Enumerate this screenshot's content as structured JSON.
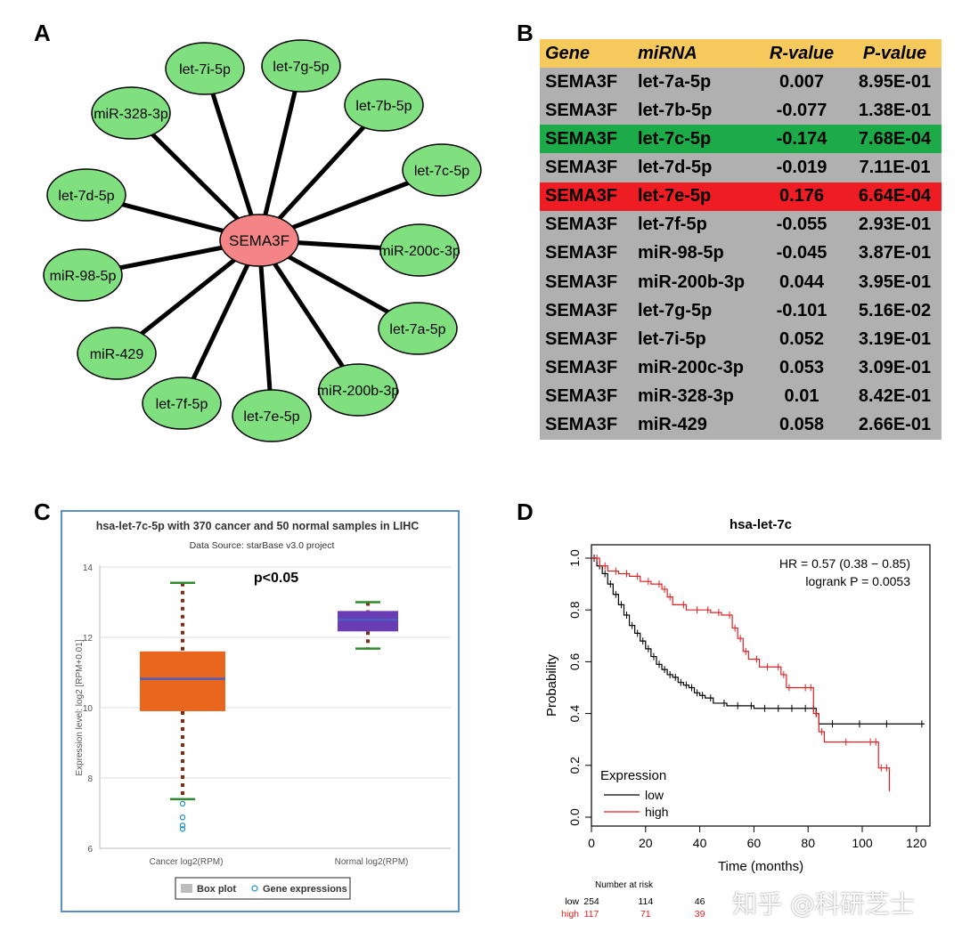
{
  "panels": {
    "a": "A",
    "b": "B",
    "c": "C",
    "d": "D"
  },
  "network": {
    "center": "SEMA3F",
    "colors": {
      "center_fill": "#f48486",
      "node_fill": "#80e080",
      "edge": "#000000"
    },
    "nodes": [
      "let-7i-5p",
      "let-7g-5p",
      "let-7b-5p",
      "miR-328-3p",
      "let-7c-5p",
      "let-7d-5p",
      "miR-200c-3p",
      "miR-98-5p",
      "let-7a-5p",
      "miR-429",
      "miR-200b-3p",
      "let-7f-5p",
      "let-7e-5p"
    ]
  },
  "table": {
    "headers": [
      "Gene",
      "miRNA",
      "R-value",
      "P-value"
    ],
    "colors": {
      "header": "#f6c95d",
      "row": "#b0b0b0",
      "green": "#1daa48",
      "red": "#ee1c23"
    },
    "rows": [
      {
        "gene": "SEMA3F",
        "mirna": "let-7a-5p",
        "r": "0.007",
        "p": "8.95E-01",
        "highlight": ""
      },
      {
        "gene": "SEMA3F",
        "mirna": "let-7b-5p",
        "r": "-0.077",
        "p": "1.38E-01",
        "highlight": ""
      },
      {
        "gene": "SEMA3F",
        "mirna": "let-7c-5p",
        "r": "-0.174",
        "p": "7.68E-04",
        "highlight": "green"
      },
      {
        "gene": "SEMA3F",
        "mirna": "let-7d-5p",
        "r": "-0.019",
        "p": "7.11E-01",
        "highlight": ""
      },
      {
        "gene": "SEMA3F",
        "mirna": "let-7e-5p",
        "r": "0.176",
        "p": "6.64E-04",
        "highlight": "red"
      },
      {
        "gene": "SEMA3F",
        "mirna": "let-7f-5p",
        "r": "-0.055",
        "p": "2.93E-01",
        "highlight": ""
      },
      {
        "gene": "SEMA3F",
        "mirna": "miR-98-5p",
        "r": "-0.045",
        "p": "3.87E-01",
        "highlight": ""
      },
      {
        "gene": "SEMA3F",
        "mirna": "miR-200b-3p",
        "r": "0.044",
        "p": "3.95E-01",
        "highlight": ""
      },
      {
        "gene": "SEMA3F",
        "mirna": "let-7g-5p",
        "r": "-0.101",
        "p": "5.16E-02",
        "highlight": ""
      },
      {
        "gene": "SEMA3F",
        "mirna": "let-7i-5p",
        "r": "0.052",
        "p": "3.19E-01",
        "highlight": ""
      },
      {
        "gene": "SEMA3F",
        "mirna": "miR-200c-3p",
        "r": "0.053",
        "p": "3.09E-01",
        "highlight": ""
      },
      {
        "gene": "SEMA3F",
        "mirna": "miR-328-3p",
        "r": "0.01",
        "p": "8.42E-01",
        "highlight": ""
      },
      {
        "gene": "SEMA3F",
        "mirna": "miR-429",
        "r": "0.058",
        "p": "2.66E-01",
        "highlight": ""
      }
    ]
  },
  "chart_data": [
    {
      "type": "box",
      "title": "hsa-let-7c-5p with 370 cancer and 50 normal samples in LIHC",
      "subtitle": "Data Source: starBase v3.0 project",
      "annotation": "p<0.05",
      "ylabel": "Expression level: log2 [RPM+0.01]",
      "ylim": [
        6,
        14
      ],
      "yticks": [
        6,
        8,
        10,
        12,
        14
      ],
      "categories": [
        "Cancer log2(RPM)",
        "Normal log2(RPM)"
      ],
      "boxes": [
        {
          "name": "Cancer log2(RPM)",
          "whisker_low": 7.4,
          "q1": 9.9,
          "median": 10.82,
          "q3": 11.6,
          "whisker_high": 13.55,
          "outliers": [
            7.27,
            6.88,
            6.65,
            6.55
          ],
          "color": "#e8661d"
        },
        {
          "name": "Normal log2(RPM)",
          "whisker_low": 11.68,
          "q1": 12.17,
          "median": 12.5,
          "q3": 12.75,
          "whisker_high": 13.0,
          "outliers": [],
          "color": "#6a3cb4"
        }
      ],
      "legend": [
        "Box plot",
        "Gene expressions"
      ],
      "colors": {
        "frame": "#5b8dc7",
        "whisker_dash": "#8b2a10",
        "whisker_cap": "#2d8a2d",
        "median": "#4a5fc1",
        "outlier": "#1e90c0"
      }
    },
    {
      "type": "line",
      "subtype": "kaplan-meier",
      "title": "hsa-let-7c",
      "xlabel": "Time (months)",
      "ylabel": "Probability",
      "xlim": [
        0,
        125
      ],
      "ylim": [
        0,
        1.0
      ],
      "xticks": [
        0,
        20,
        40,
        60,
        80,
        100,
        120
      ],
      "yticks": [
        "0.0",
        "0.2",
        "0.4",
        "0.6",
        "0.8",
        "1.0"
      ],
      "stats": [
        "HR = 0.57 (0.38 − 0.85)",
        "logrank P = 0.0053"
      ],
      "legend_title": "Expression",
      "series": [
        {
          "name": "low",
          "color": "#000000",
          "x": [
            0,
            2,
            4,
            6,
            8,
            10,
            12,
            14,
            16,
            18,
            20,
            22,
            24,
            26,
            28,
            30,
            32,
            34,
            36,
            38,
            40,
            42,
            45,
            50,
            55,
            60,
            65,
            70,
            75,
            80,
            83,
            84,
            90,
            100,
            110,
            123
          ],
          "y": [
            1.0,
            0.97,
            0.94,
            0.9,
            0.86,
            0.82,
            0.78,
            0.74,
            0.71,
            0.68,
            0.65,
            0.62,
            0.59,
            0.57,
            0.55,
            0.54,
            0.52,
            0.51,
            0.5,
            0.48,
            0.47,
            0.46,
            0.44,
            0.43,
            0.43,
            0.42,
            0.42,
            0.42,
            0.42,
            0.42,
            0.4,
            0.36,
            0.36,
            0.36,
            0.36,
            0.36
          ]
        },
        {
          "name": "high",
          "color": "#e02020",
          "x": [
            0,
            3,
            6,
            10,
            14,
            18,
            22,
            26,
            28,
            30,
            35,
            40,
            44,
            48,
            52,
            54,
            56,
            58,
            62,
            66,
            70,
            72,
            74,
            80,
            82,
            84,
            86,
            95,
            104,
            106,
            108,
            110
          ],
          "y": [
            1.0,
            0.97,
            0.95,
            0.94,
            0.93,
            0.91,
            0.9,
            0.88,
            0.85,
            0.82,
            0.8,
            0.8,
            0.79,
            0.78,
            0.73,
            0.69,
            0.64,
            0.61,
            0.58,
            0.58,
            0.55,
            0.5,
            0.5,
            0.5,
            0.4,
            0.33,
            0.29,
            0.29,
            0.29,
            0.19,
            0.19,
            0.1
          ]
        }
      ],
      "risk_table": {
        "title": "Number at risk",
        "rows": [
          {
            "name": "low",
            "color": "#000000",
            "values": [
              "254",
              "114",
              "46"
            ]
          },
          {
            "name": "high",
            "color": "#e02020",
            "values": [
              "117",
              "71",
              "39"
            ]
          }
        ]
      }
    }
  ],
  "watermark": "知乎 @科研芝士"
}
